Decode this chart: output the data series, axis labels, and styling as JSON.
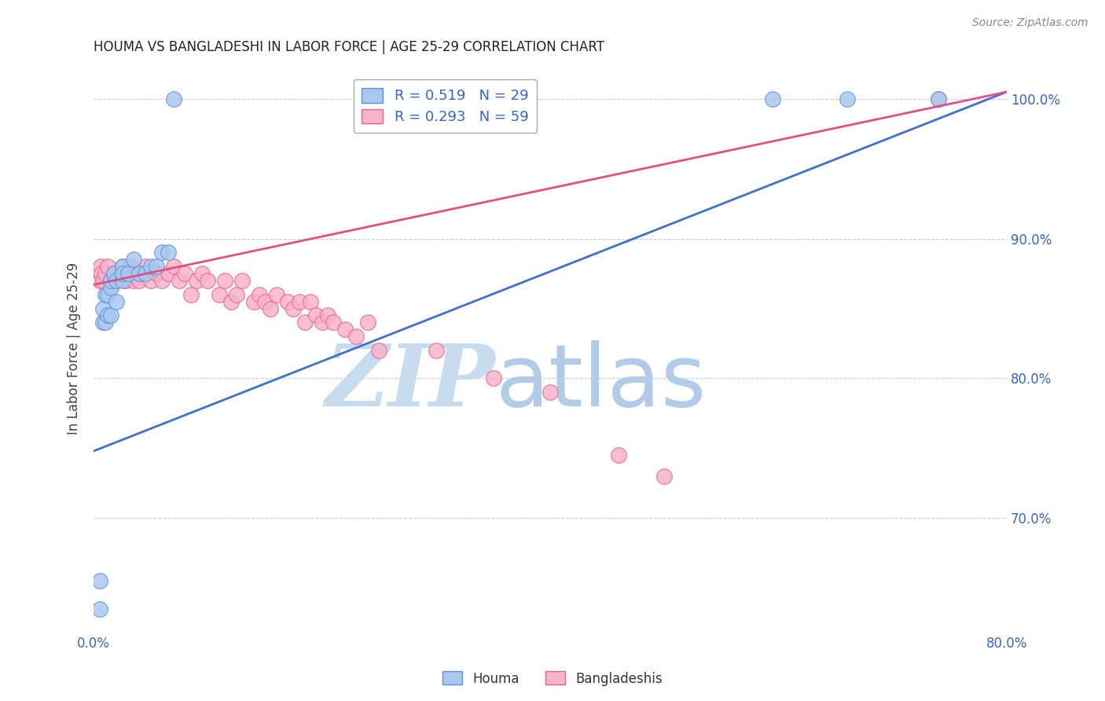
{
  "title": "HOUMA VS BANGLADESHI IN LABOR FORCE | AGE 25-29 CORRELATION CHART",
  "source": "Source: ZipAtlas.com",
  "ylabel": "In Labor Force | Age 25-29",
  "xlabel_houma": "Houma",
  "xlabel_bangladeshi": "Bangladeshis",
  "xmin": 0.0,
  "xmax": 0.8,
  "ymin": 0.618,
  "ymax": 1.025,
  "yticks": [
    0.7,
    0.8,
    0.9,
    1.0
  ],
  "ytick_labels": [
    "70.0%",
    "80.0%",
    "90.0%",
    "100.0%"
  ],
  "xtick_labels": [
    "0.0%",
    "",
    "",
    "",
    "",
    "",
    "",
    "",
    "80.0%"
  ],
  "xticks": [
    0.0,
    0.1,
    0.2,
    0.3,
    0.4,
    0.5,
    0.6,
    0.7,
    0.8
  ],
  "houma_R": 0.519,
  "houma_N": 29,
  "bangladeshi_R": 0.293,
  "bangladeshi_N": 59,
  "houma_color": "#A8C8F0",
  "bangladeshi_color": "#F8B4C8",
  "houma_edge_color": "#6090D8",
  "bangladeshi_edge_color": "#E86090",
  "houma_line_color": "#4070C8",
  "bangladeshi_line_color": "#E05080",
  "legend_text_color": "#3366CC",
  "watermark_zip": "ZIP",
  "watermark_atlas": "atlas",
  "watermark_color_zip": "#C8DCF0",
  "watermark_color_atlas": "#B0CCE8",
  "houma_x": [
    0.005,
    0.005,
    0.008,
    0.008,
    0.01,
    0.01,
    0.012,
    0.012,
    0.015,
    0.015,
    0.015,
    0.018,
    0.02,
    0.02,
    0.025,
    0.025,
    0.025,
    0.03,
    0.035,
    0.04,
    0.045,
    0.05,
    0.055,
    0.06,
    0.065,
    0.07,
    0.595,
    0.66,
    0.74
  ],
  "houma_y": [
    0.635,
    0.655,
    0.84,
    0.85,
    0.84,
    0.86,
    0.845,
    0.86,
    0.845,
    0.865,
    0.87,
    0.875,
    0.855,
    0.87,
    0.87,
    0.88,
    0.875,
    0.875,
    0.885,
    0.875,
    0.875,
    0.88,
    0.88,
    0.89,
    0.89,
    1.0,
    1.0,
    1.0,
    1.0
  ],
  "bangladeshi_x": [
    0.005,
    0.006,
    0.007,
    0.008,
    0.01,
    0.012,
    0.015,
    0.018,
    0.02,
    0.025,
    0.025,
    0.028,
    0.03,
    0.032,
    0.035,
    0.038,
    0.04,
    0.042,
    0.045,
    0.05,
    0.055,
    0.06,
    0.065,
    0.07,
    0.075,
    0.08,
    0.085,
    0.09,
    0.095,
    0.1,
    0.11,
    0.115,
    0.12,
    0.125,
    0.13,
    0.14,
    0.145,
    0.15,
    0.155,
    0.16,
    0.17,
    0.175,
    0.18,
    0.185,
    0.19,
    0.195,
    0.2,
    0.205,
    0.21,
    0.22,
    0.23,
    0.24,
    0.25,
    0.3,
    0.35,
    0.4,
    0.46,
    0.5,
    0.74
  ],
  "bangladeshi_y": [
    0.87,
    0.88,
    0.875,
    0.87,
    0.875,
    0.88,
    0.87,
    0.875,
    0.87,
    0.875,
    0.88,
    0.87,
    0.875,
    0.88,
    0.87,
    0.875,
    0.87,
    0.875,
    0.88,
    0.87,
    0.875,
    0.87,
    0.875,
    0.88,
    0.87,
    0.875,
    0.86,
    0.87,
    0.875,
    0.87,
    0.86,
    0.87,
    0.855,
    0.86,
    0.87,
    0.855,
    0.86,
    0.855,
    0.85,
    0.86,
    0.855,
    0.85,
    0.855,
    0.84,
    0.855,
    0.845,
    0.84,
    0.845,
    0.84,
    0.835,
    0.83,
    0.84,
    0.82,
    0.82,
    0.8,
    0.79,
    0.745,
    0.73,
    1.0
  ],
  "houma_line_x0": 0.0,
  "houma_line_x1": 0.8,
  "houma_line_y0": 0.748,
  "houma_line_y1": 1.005,
  "bangladeshi_line_x0": 0.0,
  "bangladeshi_line_x1": 0.8,
  "bangladeshi_line_y0": 0.867,
  "bangladeshi_line_y1": 1.005
}
